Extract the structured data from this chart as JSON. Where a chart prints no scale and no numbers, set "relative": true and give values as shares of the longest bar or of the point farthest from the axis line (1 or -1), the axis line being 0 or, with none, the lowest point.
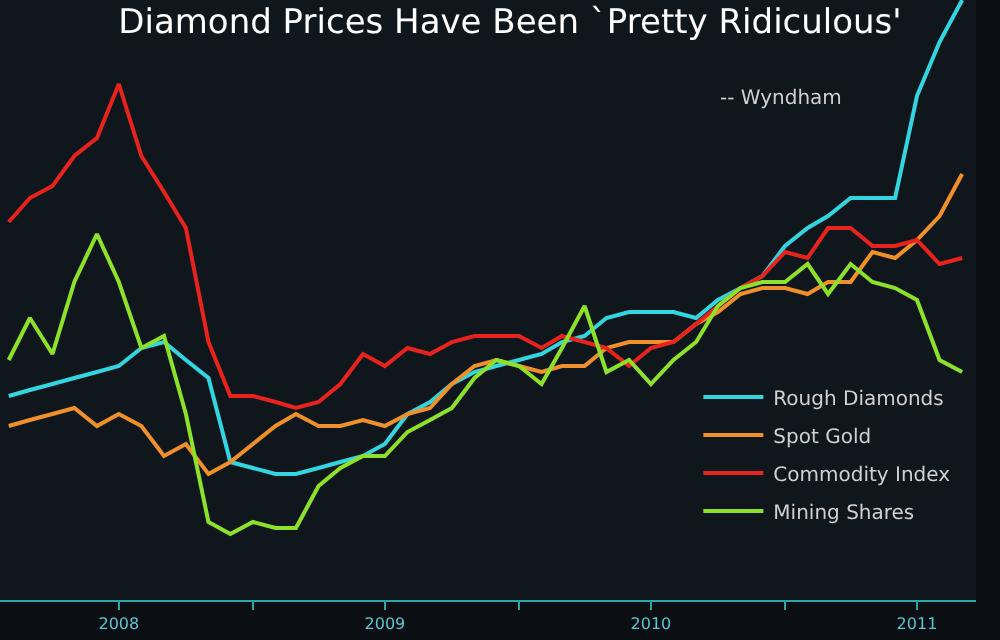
{
  "chart_data": {
    "type": "line",
    "title": "Diamond Prices Have Been `Pretty Ridiculous'",
    "subtitle": "-- Wyndham",
    "relative": true,
    "legend": "bottom right",
    "grid": false,
    "x": [
      "2008-02",
      "2008-03",
      "2008-04",
      "2008-05",
      "2008-06",
      "2008-07",
      "2008-08",
      "2008-09",
      "2008-10",
      "2008-11",
      "2008-12",
      "2009-01",
      "2009-02",
      "2009-03",
      "2009-04",
      "2009-05",
      "2009-06",
      "2009-07",
      "2009-08",
      "2009-09",
      "2009-10",
      "2009-11",
      "2009-12",
      "2010-01",
      "2010-02",
      "2010-03",
      "2010-04",
      "2010-05",
      "2010-06",
      "2010-07",
      "2010-08",
      "2010-09",
      "2010-10",
      "2010-11",
      "2010-12",
      "2011-01",
      "2011-02",
      "2011-03",
      "2011-04",
      "2011-05",
      "2011-06",
      "2011-07",
      "2011-08",
      "2011-09"
    ],
    "xlim": [
      "2008-01-20",
      "2011-09-20"
    ],
    "xticks": [
      {
        "value": "2008-07-01",
        "label": "2008"
      },
      {
        "value": "2009-01-01",
        "label": null
      },
      {
        "value": "2009-07-01",
        "label": "2009"
      },
      {
        "value": "2010-01-01",
        "label": null
      },
      {
        "value": "2010-07-01",
        "label": "2010"
      },
      {
        "value": "2011-01-01",
        "label": null
      },
      {
        "value": "2011-07-01",
        "label": "2011"
      }
    ],
    "series": [
      {
        "name": "Rough Diamonds",
        "color": "#33d6e0",
        "values": [
          0.34,
          0.35,
          0.36,
          0.37,
          0.38,
          0.39,
          0.42,
          0.43,
          0.4,
          0.37,
          0.23,
          0.22,
          0.21,
          0.21,
          0.22,
          0.23,
          0.24,
          0.26,
          0.31,
          0.33,
          0.36,
          0.38,
          0.39,
          0.4,
          0.41,
          0.43,
          0.44,
          0.47,
          0.48,
          0.48,
          0.48,
          0.47,
          0.5,
          0.52,
          0.54,
          0.59,
          0.62,
          0.64,
          0.67,
          0.67,
          0.67,
          0.84,
          0.93,
          1
        ]
      },
      {
        "name": "Spot Gold",
        "color": "#f0902a",
        "values": [
          0.29,
          0.3,
          0.31,
          0.32,
          0.29,
          0.31,
          0.29,
          0.24,
          0.26,
          0.21,
          0.23,
          0.26,
          0.29,
          0.31,
          0.29,
          0.29,
          0.3,
          0.29,
          0.31,
          0.32,
          0.36,
          0.39,
          0.4,
          0.39,
          0.38,
          0.39,
          0.39,
          0.42,
          0.43,
          0.43,
          0.43,
          0.46,
          0.48,
          0.51,
          0.52,
          0.52,
          0.51,
          0.53,
          0.53,
          0.58,
          0.57,
          0.6,
          0.64,
          0.71
        ]
      },
      {
        "name": "Commodity Index",
        "color": "#e8231e",
        "values": [
          0.63,
          0.67,
          0.69,
          0.74,
          0.77,
          0.86,
          0.74,
          0.68,
          0.62,
          0.43,
          0.34,
          0.34,
          0.33,
          0.32,
          0.33,
          0.36,
          0.41,
          0.39,
          0.42,
          0.41,
          0.43,
          0.44,
          0.44,
          0.44,
          0.42,
          0.44,
          0.43,
          0.42,
          0.39,
          0.42,
          0.43,
          0.46,
          0.49,
          0.52,
          0.54,
          0.58,
          0.57,
          0.62,
          0.62,
          0.59,
          0.59,
          0.6,
          0.56,
          0.57
        ]
      },
      {
        "name": "Mining Shares",
        "color": "#8de12a",
        "values": [
          0.4,
          0.47,
          0.41,
          0.53,
          0.61,
          0.53,
          0.42,
          0.44,
          0.31,
          0.13,
          0.11,
          0.13,
          0.12,
          0.12,
          0.19,
          0.22,
          0.24,
          0.24,
          0.28,
          0.3,
          0.32,
          0.37,
          0.4,
          0.39,
          0.36,
          0.42,
          0.49,
          0.38,
          0.4,
          0.36,
          0.4,
          0.43,
          0.49,
          0.52,
          0.53,
          0.53,
          0.56,
          0.51,
          0.56,
          0.53,
          0.52,
          0.5,
          0.4,
          0.38
        ]
      }
    ]
  }
}
